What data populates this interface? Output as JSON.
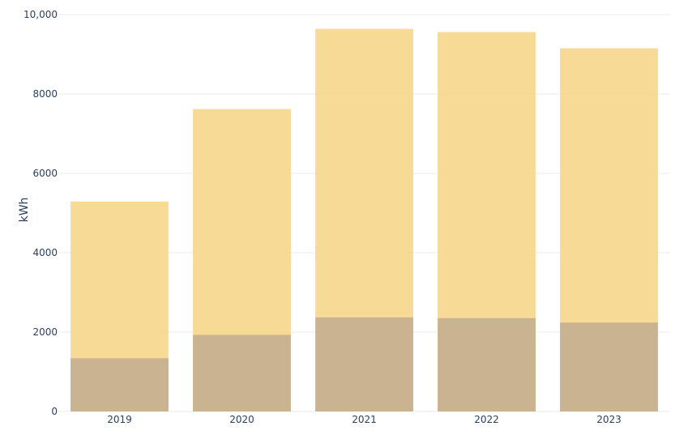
{
  "chart_data": {
    "type": "bar",
    "barmode": "overlay",
    "title": "",
    "xlabel": "",
    "ylabel": "kWh",
    "categories": [
      "2019",
      "2020",
      "2021",
      "2022",
      "2023"
    ],
    "series": [
      {
        "values": [
          5290,
          7620,
          9640,
          9560,
          9150
        ],
        "color": "#F5D88F",
        "opacity": 0.95
      },
      {
        "values": [
          1340,
          1930,
          2370,
          2350,
          2240
        ],
        "color": "#C9B390",
        "opacity": 1
      }
    ],
    "ylim": [
      0,
      10000
    ],
    "yticks": [
      0,
      2000,
      4000,
      6000,
      8000,
      10000
    ],
    "ytick_labels": [
      "0",
      "2000",
      "4000",
      "6000",
      "8000",
      "10,000"
    ],
    "grid": true,
    "legend": "none"
  }
}
